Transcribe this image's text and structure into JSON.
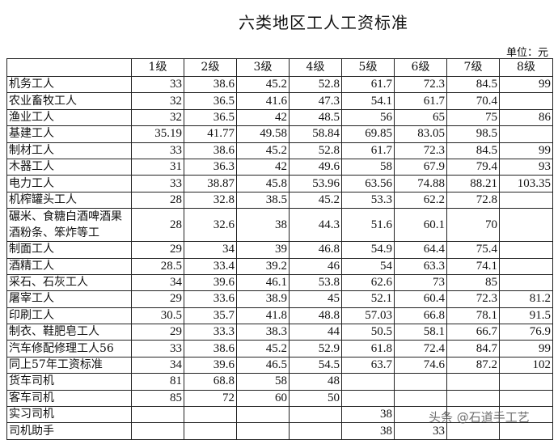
{
  "title": "六类地区工人工资标准",
  "unit": "单位：元",
  "columns": [
    "",
    "1级",
    "2级",
    "3级",
    "4级",
    "5级",
    "6级",
    "7级",
    "8级"
  ],
  "rows": [
    {
      "label": "机务工人",
      "values": [
        "33",
        "38.6",
        "45.2",
        "52.8",
        "61.7",
        "72.3",
        "84.5",
        "99"
      ]
    },
    {
      "label": "农业畜牧工人",
      "values": [
        "32",
        "36.5",
        "41.6",
        "47.3",
        "54.1",
        "61.7",
        "70.4",
        ""
      ]
    },
    {
      "label": "渔业工人",
      "values": [
        "32",
        "36.5",
        "42",
        "48.5",
        "56",
        "65",
        "75",
        "86"
      ]
    },
    {
      "label": "基建工人",
      "values": [
        "35.19",
        "41.77",
        "49.58",
        "58.84",
        "69.85",
        "83.05",
        "98.5",
        ""
      ]
    },
    {
      "label": "制材工人",
      "values": [
        "33",
        "38.6",
        "45.2",
        "52.8",
        "61.7",
        "72.3",
        "84.5",
        "99"
      ]
    },
    {
      "label": "木器工人",
      "values": [
        "31",
        "36.3",
        "42",
        "49.6",
        "58",
        "67.9",
        "79.4",
        "93"
      ]
    },
    {
      "label": "电力工人",
      "values": [
        "33",
        "38.87",
        "45.8",
        "53.96",
        "63.56",
        "74.88",
        "88.21",
        "103.35"
      ]
    },
    {
      "label": "机榨罐头工人",
      "values": [
        "28",
        "32.8",
        "38.5",
        "45.2",
        "53.3",
        "62.2",
        "72.8",
        ""
      ]
    },
    {
      "label": "碾米、食糖白酒啤酒果酒粉条、笨炸等工",
      "values": [
        "28",
        "32.6",
        "38",
        "44.3",
        "51.6",
        "60.1",
        "70",
        ""
      ]
    },
    {
      "label": "制面工人",
      "values": [
        "29",
        "34",
        "39",
        "46.8",
        "54.9",
        "64.4",
        "75.4",
        ""
      ]
    },
    {
      "label": "酒精工人",
      "values": [
        "28.5",
        "33.4",
        "39.2",
        "46",
        "54",
        "63.3",
        "74.1",
        ""
      ]
    },
    {
      "label": "采石、石灰工人",
      "values": [
        "34",
        "39.6",
        "46.1",
        "53.8",
        "62.6",
        "73",
        "85",
        ""
      ]
    },
    {
      "label": "屠宰工人",
      "values": [
        "29",
        "33.6",
        "38.9",
        "45",
        "52.1",
        "60.4",
        "72.3",
        "81.2"
      ]
    },
    {
      "label": "印刷工人",
      "values": [
        "30.5",
        "35.7",
        "41.8",
        "48.8",
        "57.03",
        "66.8",
        "78.1",
        "91.5"
      ]
    },
    {
      "label": "制衣、鞋肥皂工人",
      "values": [
        "29",
        "33.3",
        "38.3",
        "44",
        "50.5",
        "58.1",
        "66.7",
        "76.9"
      ]
    },
    {
      "label": "汽车修配修理工人56",
      "values": [
        "33",
        "38.6",
        "45.2",
        "52.9",
        "61.8",
        "72.4",
        "84.7",
        "99"
      ]
    },
    {
      "label": "同上57年工资标准",
      "values": [
        "34",
        "39.6",
        "46.5",
        "54.5",
        "63.7",
        "74.6",
        "87.2",
        "102"
      ]
    },
    {
      "label": "货车司机",
      "values": [
        "81",
        "68.8",
        "58",
        "48",
        "",
        "",
        "",
        ""
      ]
    },
    {
      "label": "客车司机",
      "values": [
        "85",
        "72",
        "60",
        "50",
        "",
        "",
        "",
        ""
      ]
    },
    {
      "label": "实习司机",
      "values": [
        "",
        "",
        "",
        "",
        "38",
        "",
        "",
        ""
      ]
    },
    {
      "label": "司机助手",
      "values": [
        "",
        "",
        "",
        "",
        "38",
        "33",
        "",
        ""
      ]
    }
  ],
  "watermark": "头条 @石道手工艺"
}
